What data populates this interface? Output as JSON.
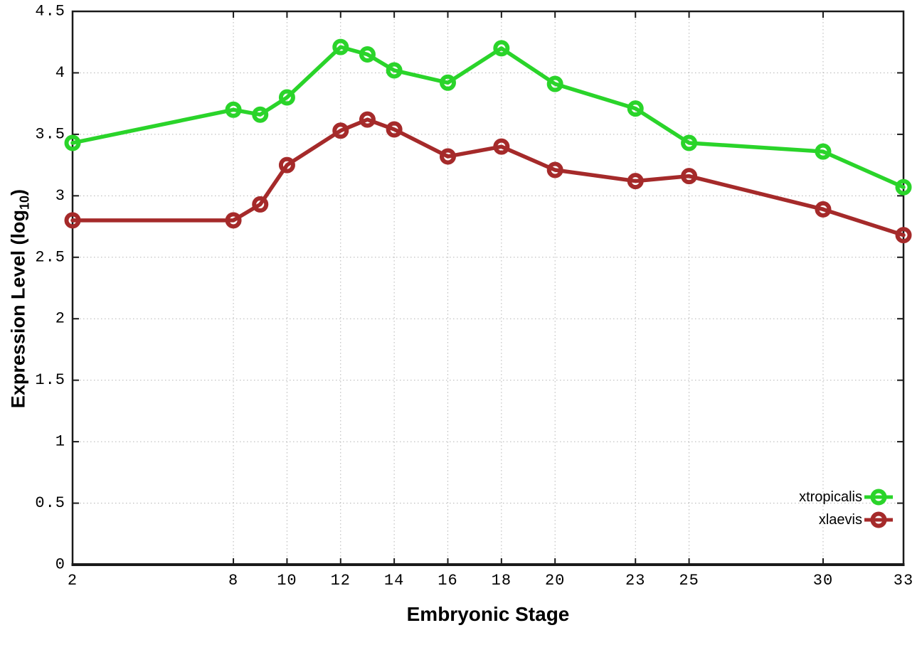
{
  "chart_data": {
    "type": "line",
    "title": "",
    "xlabel": "Embryonic Stage",
    "ylabel": "Expression Level (log10)",
    "ylabel_main": "Expression Level (log",
    "ylabel_sub": "10",
    "ylabel_close": ")",
    "xlim": [
      2,
      33
    ],
    "ylim": [
      0,
      4.5
    ],
    "x_ticks": [
      2,
      8,
      10,
      12,
      14,
      16,
      18,
      20,
      23,
      25,
      30,
      33
    ],
    "x_tick_labels": [
      "2",
      "8",
      "10",
      "12",
      "14",
      "16",
      "18",
      "20",
      "23",
      "25",
      "30",
      "33"
    ],
    "y_ticks": [
      0,
      0.5,
      1,
      1.5,
      2,
      2.5,
      3,
      3.5,
      4,
      4.5
    ],
    "y_tick_labels": [
      "0",
      "0.5",
      "1",
      "1.5",
      "2",
      "2.5",
      "3",
      "3.5",
      "4",
      "4.5"
    ],
    "grid": true,
    "grid_style": "dotted",
    "legend_position": "bottom-right",
    "marker": "open-circle",
    "x": [
      2,
      8,
      9,
      10,
      12,
      13,
      14,
      16,
      18,
      20,
      23,
      25,
      30,
      33
    ],
    "series": [
      {
        "name": "xtropicalis",
        "color": "#2ad42a",
        "values": [
          3.43,
          3.7,
          3.66,
          3.8,
          4.21,
          4.15,
          4.02,
          3.92,
          4.2,
          3.91,
          3.71,
          3.43,
          3.36,
          3.07
        ]
      },
      {
        "name": "xlaevis",
        "color": "#a52a2a",
        "values": [
          2.8,
          2.8,
          2.93,
          3.25,
          3.53,
          3.62,
          3.54,
          3.32,
          3.4,
          3.21,
          3.12,
          3.16,
          2.89,
          2.68
        ]
      }
    ],
    "colors": {
      "axis": "#1a1a1a",
      "grid": "#b4b4b4",
      "text": "#000000"
    }
  }
}
